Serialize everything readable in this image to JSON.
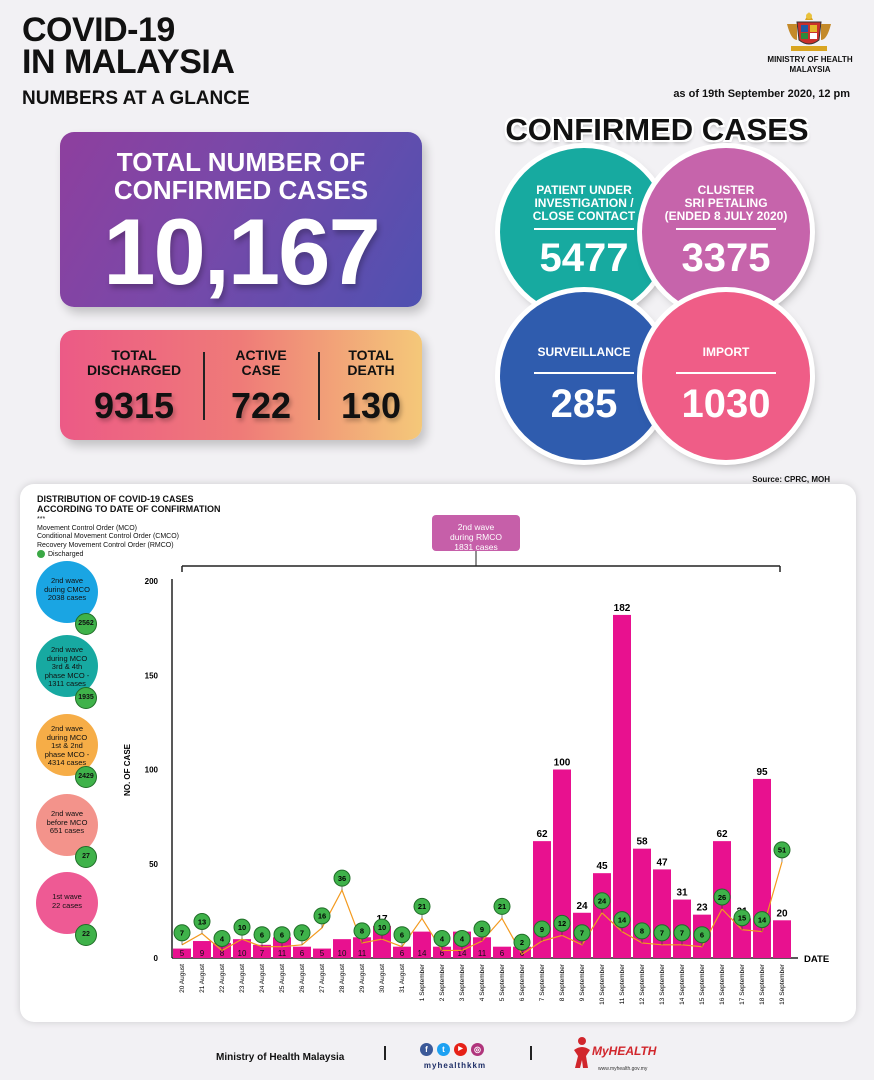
{
  "header": {
    "title_line1": "COVID-19",
    "title_line2": "IN MALAYSIA",
    "subtitle": "NUMBERS AT A GLANCE",
    "ministry_line1": "MINISTRY OF HEALTH",
    "ministry_line2": "MALAYSIA",
    "as_of": "as of 19th September 2020, 12 pm"
  },
  "total": {
    "label_line1": "TOTAL NUMBER OF",
    "label_line2": "CONFIRMED CASES",
    "value": "10,167"
  },
  "stats": {
    "discharged_line1": "TOTAL",
    "discharged_line2": "DISCHARGED",
    "discharged_value": "9315",
    "active_line1": "ACTIVE",
    "active_line2": "CASE",
    "active_value": "722",
    "death_line1": "TOTAL",
    "death_line2": "DEATH",
    "death_value": "130"
  },
  "confirmed": {
    "title": "CONFIRMED CASES",
    "pui_line1": "PATIENT UNDER",
    "pui_line2": "INVESTIGATION /",
    "pui_line3": "CLOSE CONTACT",
    "pui_value": "5477",
    "cluster_line1": "CLUSTER",
    "cluster_line2": "SRI PETALING",
    "cluster_line3": "(ENDED 8 JULY 2020)",
    "cluster_value": "3375",
    "surveillance_label": "SURVEILLANCE",
    "surveillance_value": "285",
    "import_label": "IMPORT",
    "import_value": "1030",
    "colors": {
      "pui": "#17aaa0",
      "cluster": "#c664ab",
      "surveillance": "#2f5cae",
      "import": "#ef5d87"
    }
  },
  "source": "Source: CPRC, MOH",
  "legend": {
    "title_line1": "DISTRIBUTION OF COVID-19 CASES",
    "title_line2": "ACCORDING TO DATE OF CONFIRMATION",
    "stars": "***",
    "mco": "Movement Control Order (MCO)",
    "cmco": "Conditional Movement Control Order (CMCO)",
    "rmco": "Recovery Movement Control Order (RMCO)",
    "discharged": "Discharged"
  },
  "rmco_box": {
    "line1": "2nd wave",
    "line2": "during RMCO",
    "line3": "1831 cases"
  },
  "waves": [
    {
      "line1": "2nd wave",
      "line2": "during CMCO",
      "line3": "2038 cases",
      "line4": "",
      "badge": "2562",
      "color": "#1aa5e3"
    },
    {
      "line1": "2nd wave",
      "line2": "during MCO",
      "line3": "3rd & 4th",
      "line4": "phase MCO - 1311 cases",
      "badge": "1935",
      "color": "#17a9a1"
    },
    {
      "line1": "2nd wave",
      "line2": "during MCO",
      "line3": "1st & 2nd",
      "line4": "phase MCO - 4314 cases",
      "badge": "2429",
      "color": "#f6ad47"
    },
    {
      "line1": "2nd wave",
      "line2": "before MCO",
      "line3": "651 cases",
      "line4": "",
      "badge": "27",
      "color": "#f3938b"
    },
    {
      "line1": "1st wave",
      "line2": "22 cases",
      "line3": "",
      "line4": "",
      "badge": "22",
      "color": "#ee5a94"
    }
  ],
  "chart_data": {
    "type": "bar",
    "ylabel": "NO. OF CASE",
    "xlabel": "DATE",
    "ylim": [
      0,
      200
    ],
    "yticks": [
      0,
      50,
      100,
      150,
      200
    ],
    "bar_color": "#e8118f",
    "discharged_color": "#3fb24a",
    "line_color": "#f39a1f",
    "categories": [
      "20 August",
      "21 August",
      "22 August",
      "23 August",
      "24 August",
      "25 August",
      "26 August",
      "27 August",
      "28 August",
      "29 August",
      "30 August",
      "31 August",
      "1 September",
      "2 September",
      "3 September",
      "4 September",
      "5 September",
      "6 September",
      "7 September",
      "8 September",
      "9 September",
      "10 September",
      "11 September",
      "12 September",
      "13 September",
      "14 September",
      "15 September",
      "16 September",
      "17 September",
      "18 September",
      "19 September"
    ],
    "series": [
      {
        "name": "",
        "values": [
          5,
          9,
          8,
          10,
          7,
          11,
          6,
          5,
          10,
          11,
          17,
          6,
          14,
          6,
          14,
          11,
          6,
          6,
          62,
          100,
          24,
          45,
          182,
          58,
          47,
          31,
          23,
          62,
          21,
          95,
          20
        ]
      },
      {
        "name": "Discharged",
        "values": [
          7,
          13,
          4,
          10,
          6,
          6,
          7,
          16,
          36,
          8,
          10,
          6,
          21,
          4,
          4,
          9,
          21,
          2,
          9,
          12,
          7,
          24,
          14,
          8,
          7,
          7,
          6,
          26,
          15,
          14,
          51
        ]
      }
    ]
  },
  "footer": {
    "ministry": "Ministry of Health Malaysia",
    "handle": "myhealthkkm",
    "brand": "MyHEALTH",
    "url": "www.myhealth.gov.my",
    "social_f": "f",
    "social_t": "t",
    "social_y": "▶",
    "social_i": "◎"
  }
}
